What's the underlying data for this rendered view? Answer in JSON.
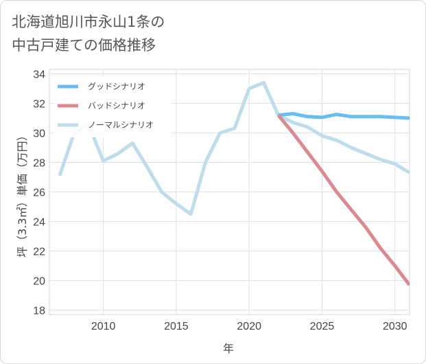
{
  "title": {
    "line1": "北海道旭川市永山1条の",
    "line2": "中古戸建ての価格推移"
  },
  "chart_data": {
    "type": "line",
    "xlabel": "年",
    "ylabel": "坪（3.3㎡）単価（万円）",
    "xlim": [
      2006.3,
      2031
    ],
    "ylim": [
      17.7,
      34.3
    ],
    "xticks": [
      2010,
      2015,
      2020,
      2025,
      2030
    ],
    "yticks": [
      18,
      20,
      22,
      24,
      26,
      28,
      30,
      32,
      34
    ],
    "grid": true,
    "legend_position": "top-left",
    "series": [
      {
        "name": "グッドシナリオ",
        "color": "#6bbcef",
        "x": [
          2022,
          2023,
          2024,
          2025,
          2026,
          2027,
          2028,
          2029,
          2030,
          2031
        ],
        "values": [
          31.2,
          31.3,
          31.1,
          31.05,
          31.25,
          31.1,
          31.1,
          31.1,
          31.05,
          31.0
        ]
      },
      {
        "name": "バッドシナリオ",
        "color": "#db8a92",
        "x": [
          2022,
          2023,
          2024,
          2025,
          2026,
          2027,
          2028,
          2029,
          2030,
          2031
        ],
        "values": [
          31.2,
          30.0,
          28.7,
          27.4,
          26.0,
          24.8,
          23.6,
          22.2,
          21.0,
          19.7
        ]
      },
      {
        "name": "ノーマルシナリオ",
        "color": "#bcdde9",
        "x": [
          2007,
          2008,
          2009,
          2010,
          2011,
          2012,
          2013,
          2014,
          2015,
          2016,
          2017,
          2018,
          2019,
          2020,
          2021,
          2022,
          2023,
          2024,
          2025,
          2026,
          2027,
          2028,
          2029,
          2030,
          2031
        ],
        "values": [
          27.1,
          30.0,
          30.5,
          28.1,
          28.6,
          29.3,
          27.7,
          26.0,
          25.2,
          24.5,
          28.0,
          30.0,
          30.3,
          33.0,
          33.4,
          31.2,
          30.7,
          30.4,
          29.8,
          29.5,
          29.0,
          28.6,
          28.2,
          27.9,
          27.3
        ]
      }
    ]
  }
}
